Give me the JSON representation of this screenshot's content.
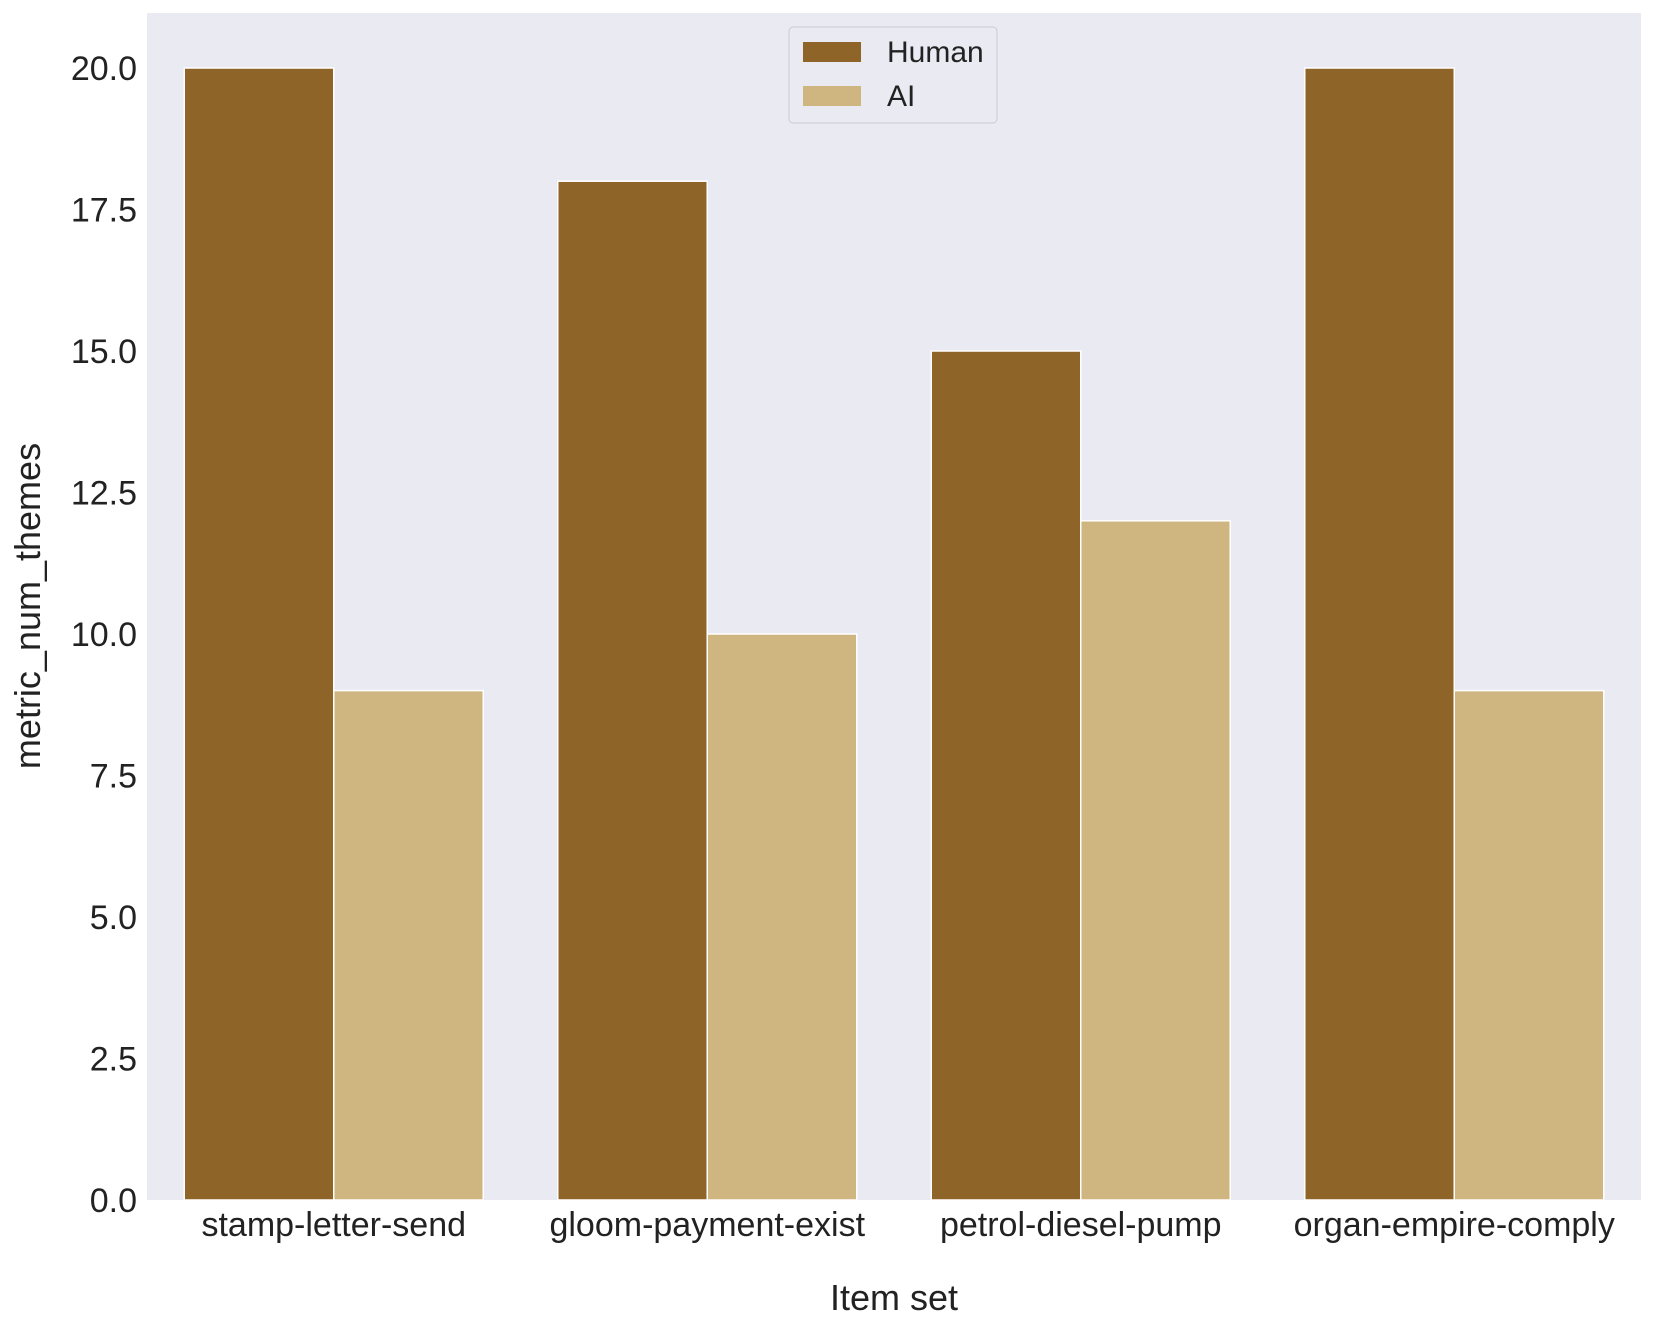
{
  "chart_data": {
    "type": "bar",
    "categories": [
      "stamp-letter-send",
      "gloom-payment-exist",
      "petrol-diesel-pump",
      "organ-empire-comply"
    ],
    "series": [
      {
        "name": "Human",
        "values": [
          20,
          18,
          15,
          20
        ],
        "color": "#8f6429"
      },
      {
        "name": "AI",
        "values": [
          9,
          10,
          12,
          9
        ],
        "color": "#cfb57f"
      }
    ],
    "xlabel": "Item set",
    "ylabel": "metric_num_themes",
    "ylim": [
      0,
      21
    ],
    "yticks": [
      "0.0",
      "2.5",
      "5.0",
      "7.5",
      "10.0",
      "12.5",
      "15.0",
      "17.5",
      "20.0"
    ],
    "grid": false,
    "legend_position": "top-center",
    "background_color": "#eaeaf2"
  }
}
